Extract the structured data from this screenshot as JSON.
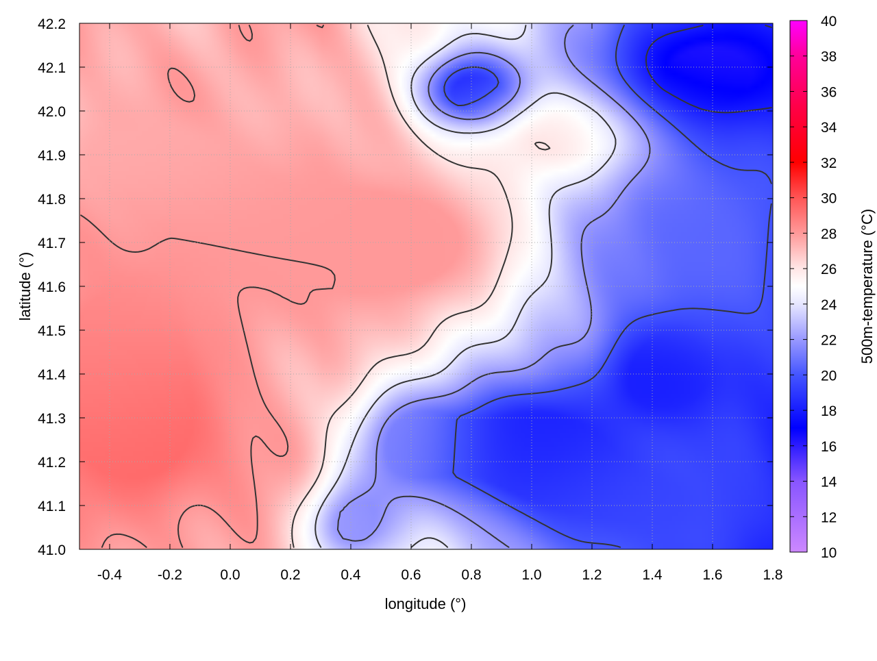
{
  "chart_data": {
    "type": "heatmap",
    "title": "",
    "xlabel": "longitude (°)",
    "ylabel": "latitude (°)",
    "colorbar_label": "500m-temperature (°C)",
    "xlim": [
      -0.5,
      1.8
    ],
    "ylim": [
      41.0,
      42.2
    ],
    "x_ticks": [
      -0.4,
      -0.2,
      0.0,
      0.2,
      0.4,
      0.6,
      0.8,
      1.0,
      1.2,
      1.4,
      1.6,
      1.8
    ],
    "x_tick_labels": [
      "-0.4",
      "-0.2",
      "0.0",
      "0.2",
      "0.4",
      "0.6",
      "0.8",
      "1.0",
      "1.2",
      "1.4",
      "1.6",
      "1.8"
    ],
    "y_ticks": [
      41.0,
      41.1,
      41.2,
      41.3,
      41.4,
      41.5,
      41.6,
      41.7,
      41.8,
      41.9,
      42.0,
      42.1,
      42.2
    ],
    "y_tick_labels": [
      "41.0",
      "41.1",
      "41.2",
      "41.3",
      "41.4",
      "41.5",
      "41.6",
      "41.7",
      "41.8",
      "41.9",
      "42.0",
      "42.1",
      "42.2"
    ],
    "colorbar_range": [
      10,
      40
    ],
    "colorbar_ticks": [
      10,
      12,
      14,
      16,
      18,
      20,
      22,
      24,
      26,
      28,
      30,
      32,
      34,
      36,
      38,
      40
    ],
    "colorbar_tick_labels": [
      "10",
      "12",
      "14",
      "16",
      "18",
      "20",
      "22",
      "24",
      "26",
      "28",
      "30",
      "32",
      "34",
      "36",
      "38",
      "40"
    ],
    "colormap_stops": [
      {
        "value": 10,
        "color": "#cc88ff"
      },
      {
        "value": 14,
        "color": "#8855ff"
      },
      {
        "value": 17,
        "color": "#0000ff"
      },
      {
        "value": 20,
        "color": "#4455ff"
      },
      {
        "value": 22,
        "color": "#9999ff"
      },
      {
        "value": 24,
        "color": "#e6e6ff"
      },
      {
        "value": 25,
        "color": "#ffffff"
      },
      {
        "value": 26,
        "color": "#ffe6e6"
      },
      {
        "value": 28,
        "color": "#ff9999"
      },
      {
        "value": 30,
        "color": "#ff5555"
      },
      {
        "value": 32,
        "color": "#ff0000"
      },
      {
        "value": 35,
        "color": "#ff0044"
      },
      {
        "value": 38,
        "color": "#ff0099"
      },
      {
        "value": 40,
        "color": "#ff00ff"
      }
    ],
    "grid": true,
    "grid_style": "dotted",
    "contour_lines": true,
    "field_blobs": [
      {
        "lon": -0.3,
        "lat": 41.25,
        "temp": 29.5,
        "spread_lon": 0.25,
        "spread_lat": 0.15
      },
      {
        "lon": -0.4,
        "lat": 41.45,
        "temp": 28.5,
        "spread_lon": 0.2,
        "spread_lat": 0.15
      },
      {
        "lon": 0.1,
        "lat": 41.7,
        "temp": 28.0,
        "spread_lon": 0.35,
        "spread_lat": 0.15
      },
      {
        "lon": 0.6,
        "lat": 41.7,
        "temp": 28.0,
        "spread_lon": 0.25,
        "spread_lat": 0.12
      },
      {
        "lon": -0.3,
        "lat": 41.9,
        "temp": 27.5,
        "spread_lon": 0.3,
        "spread_lat": 0.1
      },
      {
        "lon": 1.1,
        "lat": 41.95,
        "temp": 26.5,
        "spread_lon": 0.2,
        "spread_lat": 0.08
      },
      {
        "lon": 1.0,
        "lat": 41.25,
        "temp": 18.0,
        "spread_lon": 0.2,
        "spread_lat": 0.1
      },
      {
        "lon": 1.45,
        "lat": 41.4,
        "temp": 17.5,
        "spread_lon": 0.15,
        "spread_lat": 0.08
      },
      {
        "lon": 1.4,
        "lat": 41.1,
        "temp": 19.5,
        "spread_lon": 0.4,
        "spread_lat": 0.12
      },
      {
        "lon": 1.6,
        "lat": 42.1,
        "temp": 16.0,
        "spread_lon": 0.25,
        "spread_lat": 0.1
      },
      {
        "lon": 0.8,
        "lat": 42.05,
        "temp": 18.0,
        "spread_lon": 0.12,
        "spread_lat": 0.06
      },
      {
        "lon": 1.6,
        "lat": 41.7,
        "temp": 20.5,
        "spread_lon": 0.25,
        "spread_lat": 0.2
      },
      {
        "lon": 0.6,
        "lat": 41.25,
        "temp": 21.5,
        "spread_lon": 0.15,
        "spread_lat": 0.1
      },
      {
        "lon": 0.4,
        "lat": 41.05,
        "temp": 22.0,
        "spread_lon": 0.12,
        "spread_lat": 0.08
      }
    ]
  }
}
